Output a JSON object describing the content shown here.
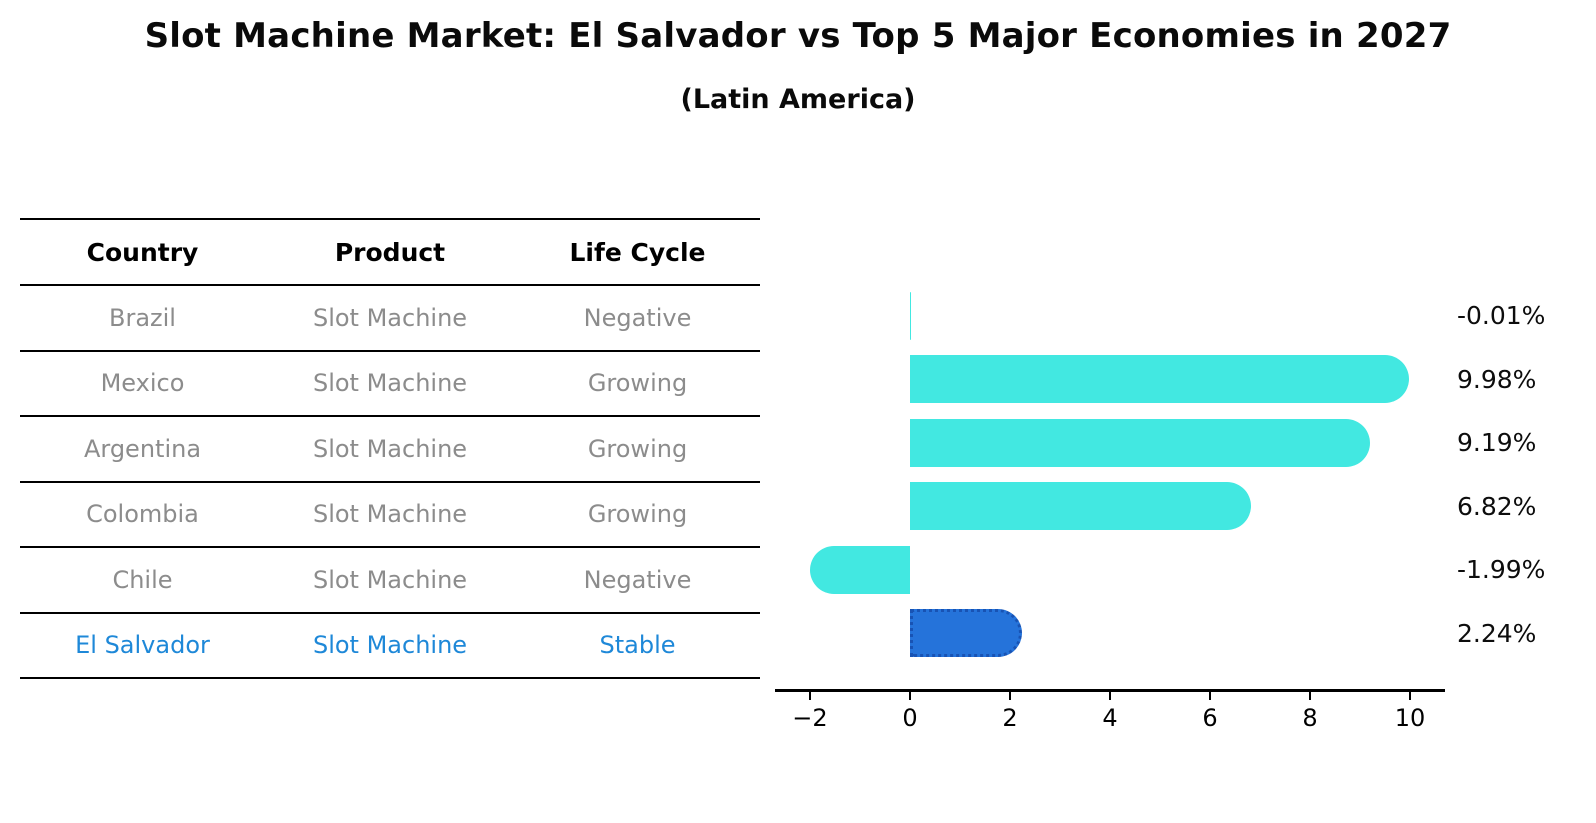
{
  "header": {
    "title": "Slot Machine Market: El Salvador vs Top 5 Major Economies in 2027",
    "subtitle": "(Latin America)"
  },
  "table": {
    "columns": [
      "Country",
      "Product",
      "Life Cycle"
    ],
    "rows": [
      {
        "country": "Brazil",
        "product": "Slot Machine",
        "life_cycle": "Negative",
        "highlight": false
      },
      {
        "country": "Mexico",
        "product": "Slot Machine",
        "life_cycle": "Growing",
        "highlight": false
      },
      {
        "country": "Argentina",
        "product": "Slot Machine",
        "life_cycle": "Growing",
        "highlight": false
      },
      {
        "country": "Colombia",
        "product": "Slot Machine",
        "life_cycle": "Growing",
        "highlight": false
      },
      {
        "country": "Chile",
        "product": "Slot Machine",
        "life_cycle": "Negative",
        "highlight": false
      },
      {
        "country": "El Salvador",
        "product": "Slot Machine",
        "life_cycle": "Stable",
        "highlight": true
      }
    ]
  },
  "chart_data": {
    "type": "bar",
    "orientation": "horizontal",
    "title": "Slot Machine Market: El Salvador vs Top 5 Major Economies in 2027",
    "subtitle": "(Latin America)",
    "categories": [
      "Brazil",
      "Mexico",
      "Argentina",
      "Colombia",
      "Chile",
      "El Salvador"
    ],
    "values": [
      -0.01,
      9.98,
      9.19,
      6.82,
      -1.99,
      2.24
    ],
    "value_labels": [
      "-0.01%",
      "9.98%",
      "9.19%",
      "6.82%",
      "-1.99%",
      "2.24%"
    ],
    "x_ticks": [
      -2,
      0,
      2,
      4,
      6,
      8,
      10
    ],
    "xlim": [
      -2.7,
      10.7
    ],
    "grid": false,
    "legend": "none",
    "highlight_index": 5,
    "colors": {
      "bar_default": "#42e8e1",
      "bar_highlight": "#2573da",
      "highlight_text": "#1e88d8"
    }
  }
}
